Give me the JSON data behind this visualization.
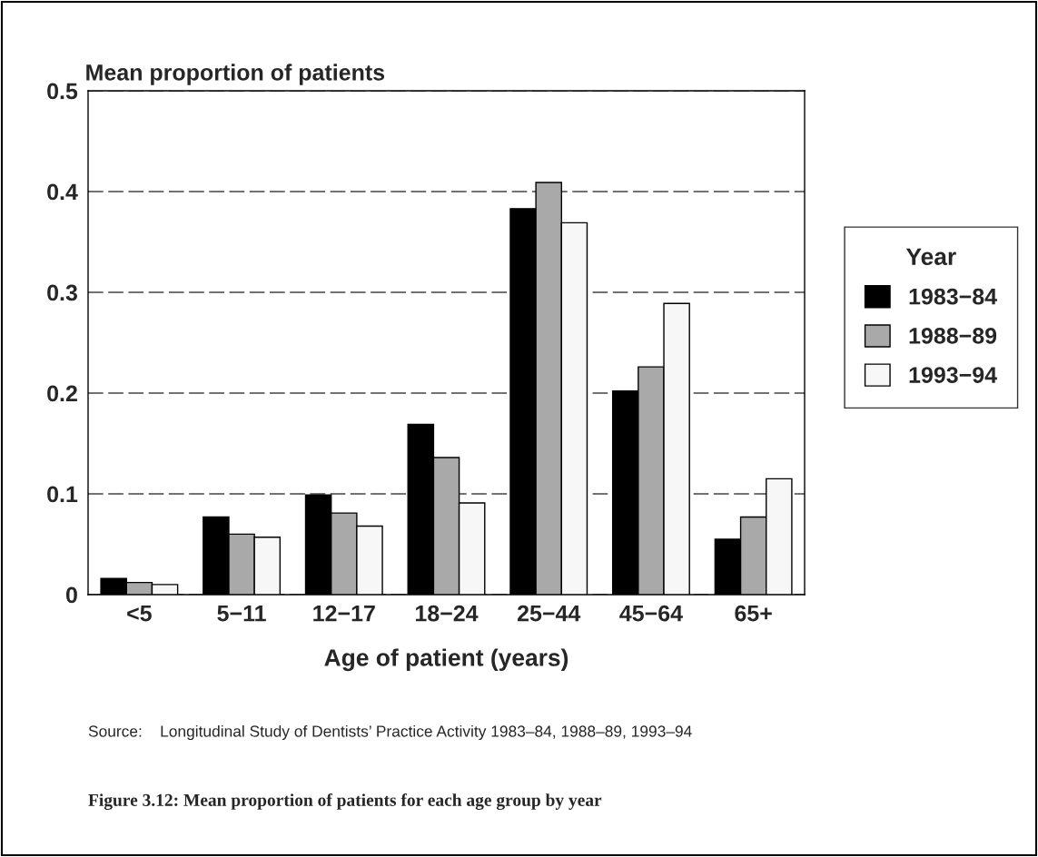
{
  "chart_data": {
    "type": "bar",
    "ylabel": "Mean proportion of patients",
    "xlabel": "Age of patient (years)",
    "categories": [
      "<5",
      "5−11",
      "12−17",
      "18−24",
      "25−44",
      "45−64",
      "65+"
    ],
    "series": [
      {
        "name": "1983−84",
        "color": "#000000",
        "values": [
          0.016,
          0.077,
          0.099,
          0.169,
          0.383,
          0.202,
          0.055
        ]
      },
      {
        "name": "1988−89",
        "color": "#a9a9a9",
        "values": [
          0.012,
          0.06,
          0.081,
          0.136,
          0.409,
          0.226,
          0.077
        ]
      },
      {
        "name": "1993−94",
        "color": "#f7f7f7",
        "values": [
          0.01,
          0.057,
          0.068,
          0.091,
          0.369,
          0.289,
          0.115
        ]
      }
    ],
    "ylim": [
      0,
      0.5
    ],
    "yticks": [
      0,
      0.1,
      0.2,
      0.3,
      0.4,
      0.5
    ],
    "grid": "y",
    "legend": "right",
    "legend_title": "Year",
    "annotations": [
      "Source:    Longitudinal Study of Dentists’ Practice Activity 1983–84, 1988–89, 1993–94",
      "Figure 3.12: Mean proportion of patients for each age group by year"
    ]
  }
}
